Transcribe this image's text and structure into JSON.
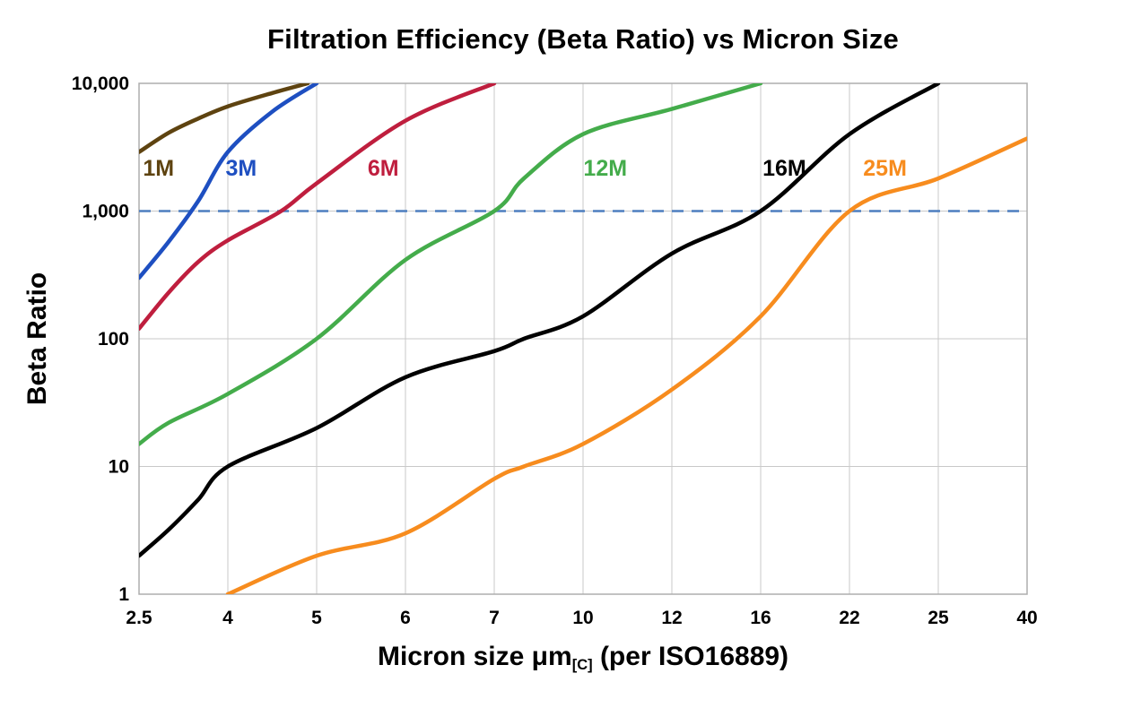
{
  "chart_data": {
    "type": "line",
    "title": "Filtration Efficiency (Beta Ratio) vs Micron Size",
    "x_axis": {
      "label_main": "Micron size μm",
      "label_sub": "[C]",
      "label_rest": " (per ISO16889)",
      "ticks": [
        2.5,
        4,
        5,
        6,
        7,
        10,
        12,
        16,
        22,
        25,
        40
      ],
      "tick_labels": [
        "2.5",
        "4",
        "5",
        "6",
        "7",
        "10",
        "12",
        "16",
        "22",
        "25",
        "40"
      ],
      "spacing": "equal-per-tick"
    },
    "y_axis": {
      "label": "Beta Ratio",
      "scale": "log",
      "range": [
        1,
        10000
      ],
      "ticks": [
        1,
        10,
        100,
        1000,
        10000
      ],
      "tick_labels": [
        "1",
        "10",
        "100",
        "1,000",
        "10,000"
      ]
    },
    "grid": true,
    "legend_position": "inline-labels",
    "reference_line": {
      "value": 1000,
      "style": "dashed",
      "color": "#4d7ebf"
    },
    "series": [
      {
        "name": "1M",
        "color": "#5e4310",
        "label": {
          "x": 2.83,
          "y": 2100
        },
        "points": [
          [
            2.5,
            2900
          ],
          [
            3,
            4100
          ],
          [
            3.5,
            5300
          ],
          [
            4,
            6600
          ],
          [
            4.5,
            8400
          ],
          [
            4.9,
            10000
          ]
        ]
      },
      {
        "name": "3M",
        "color": "#1e4fc1",
        "label": {
          "x": 4.15,
          "y": 2100
        },
        "points": [
          [
            2.5,
            300
          ],
          [
            3,
            575
          ],
          [
            3.5,
            1200
          ],
          [
            4,
            2900
          ],
          [
            4.5,
            6000
          ],
          [
            5,
            10000
          ]
        ]
      },
      {
        "name": "6M",
        "color": "#bf1e3e",
        "label": {
          "x": 5.75,
          "y": 2100
        },
        "points": [
          [
            2.5,
            120
          ],
          [
            3,
            230
          ],
          [
            3.5,
            400
          ],
          [
            4,
            590
          ],
          [
            4.6,
            1000
          ],
          [
            5,
            1650
          ],
          [
            6,
            5100
          ],
          [
            7,
            10000
          ]
        ]
      },
      {
        "name": "12M",
        "color": "#44ac4b",
        "label": {
          "x": 10.5,
          "y": 2100
        },
        "points": [
          [
            2.5,
            15
          ],
          [
            3,
            22
          ],
          [
            4,
            37
          ],
          [
            5,
            100
          ],
          [
            6,
            415
          ],
          [
            7,
            1000
          ],
          [
            8,
            1800
          ],
          [
            10,
            4000
          ],
          [
            12,
            6300
          ],
          [
            16,
            10000
          ]
        ]
      },
      {
        "name": "16M",
        "color": "#000000",
        "label": {
          "x": 17.6,
          "y": 2100
        },
        "points": [
          [
            2.5,
            2
          ],
          [
            3,
            3.2
          ],
          [
            3.5,
            5.5
          ],
          [
            4,
            10
          ],
          [
            5,
            20
          ],
          [
            6,
            50
          ],
          [
            7,
            80
          ],
          [
            8,
            100
          ],
          [
            10,
            150
          ],
          [
            12,
            465
          ],
          [
            16,
            1000
          ],
          [
            22,
            4000
          ],
          [
            25,
            10000
          ]
        ]
      },
      {
        "name": "25M",
        "color": "#f78c1e",
        "label": {
          "x": 23.2,
          "y": 2100
        },
        "points": [
          [
            4,
            1
          ],
          [
            5,
            2
          ],
          [
            6,
            3
          ],
          [
            7,
            8
          ],
          [
            8,
            10
          ],
          [
            10,
            15
          ],
          [
            12,
            40
          ],
          [
            16,
            150
          ],
          [
            22,
            1000
          ],
          [
            25,
            1800
          ],
          [
            40,
            3700
          ]
        ]
      }
    ]
  },
  "colors": {
    "background": "#ffffff",
    "grid": "#c9c9c9",
    "border": "#adadad",
    "text": "#000000"
  }
}
